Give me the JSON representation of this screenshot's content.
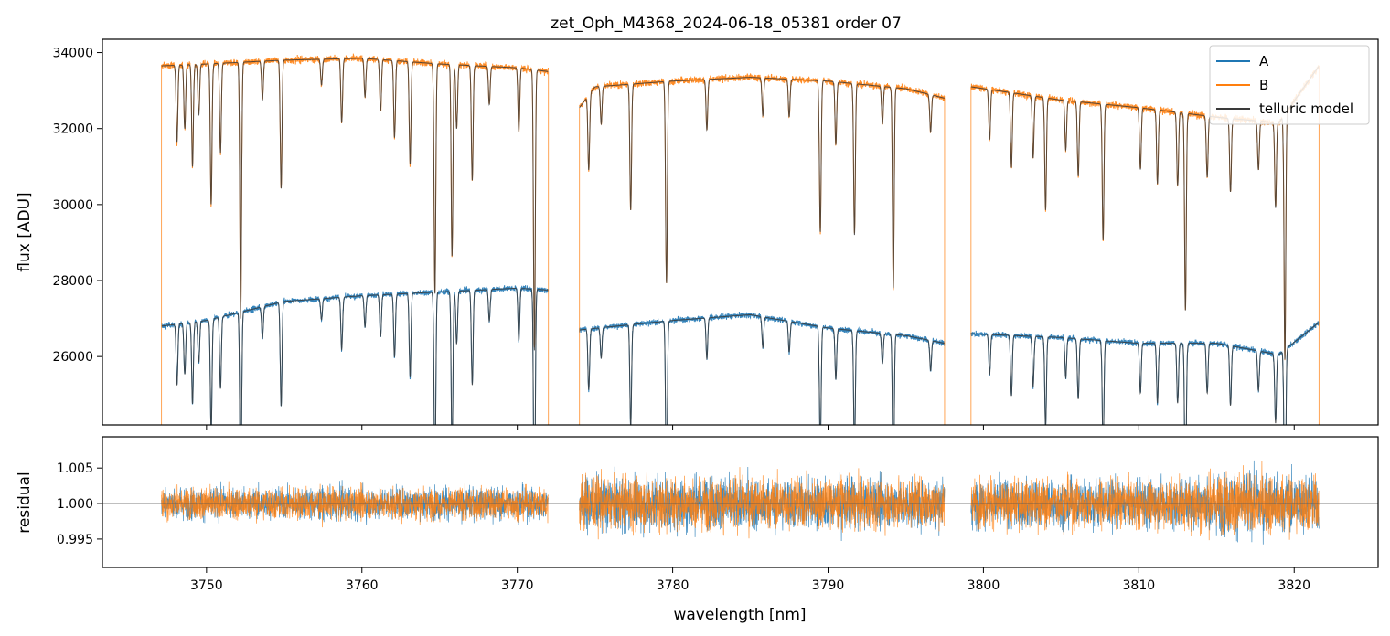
{
  "figure": {
    "title": "zet_Oph_M4368_2024-06-18_05381  order 07"
  },
  "colors": {
    "A": "#1f77b4",
    "B": "#ff7f0e",
    "model": "#3a3a3a",
    "zero_line": "#555555"
  },
  "chart_data": [
    {
      "type": "line",
      "panel": "spectrum",
      "title": "zet_Oph_M4368_2024-06-18_05381  order 07",
      "xlabel": "",
      "ylabel": "flux [ADU]",
      "xlim": [
        3743.3,
        3825.4
      ],
      "ylim": [
        24200,
        34350
      ],
      "yticks": [
        26000,
        28000,
        30000,
        32000,
        34000
      ],
      "ytick_labels": [
        "26000",
        "28000",
        "30000",
        "32000",
        "34000"
      ],
      "grid": false,
      "legend": {
        "placement": "top-right",
        "entries": [
          "A",
          "B",
          "telluric model"
        ]
      },
      "segments": [
        [
          3747.1,
          3772.0
        ],
        [
          3774.0,
          3797.5
        ],
        [
          3799.2,
          3821.6
        ]
      ],
      "series": [
        {
          "name": "A",
          "continuum": [
            [
              3747.1,
              26800
            ],
            [
              3750,
              26950
            ],
            [
              3755,
              27450
            ],
            [
              3760,
              27600
            ],
            [
              3765,
              27700
            ],
            [
              3770,
              27800
            ],
            [
              3772.0,
              27750
            ],
            [
              3774.0,
              26700
            ],
            [
              3780,
              26950
            ],
            [
              3785,
              27100
            ],
            [
              3790,
              26750
            ],
            [
              3795,
              26550
            ],
            [
              3797.5,
              26350
            ],
            [
              3799.2,
              26600
            ],
            [
              3805,
              26500
            ],
            [
              3810,
              26350
            ],
            [
              3815,
              26350
            ],
            [
              3819,
              26050
            ],
            [
              3821.6,
              26900
            ]
          ]
        },
        {
          "name": "B",
          "continuum": [
            [
              3747.1,
              33650
            ],
            [
              3750,
              33700
            ],
            [
              3755,
              33800
            ],
            [
              3760,
              33850
            ],
            [
              3765,
              33700
            ],
            [
              3770,
              33600
            ],
            [
              3772.0,
              33500
            ],
            [
              3774.0,
              32550
            ],
            [
              3775,
              33100
            ],
            [
              3780,
              33250
            ],
            [
              3785,
              33350
            ],
            [
              3790,
              33250
            ],
            [
              3795,
              33050
            ],
            [
              3797.5,
              32800
            ],
            [
              3799.2,
              33100
            ],
            [
              3805,
              32750
            ],
            [
              3810,
              32550
            ],
            [
              3815,
              32300
            ],
            [
              3819,
              32150
            ],
            [
              3821.6,
              33650
            ]
          ]
        },
        {
          "name": "telluric model"
        }
      ],
      "lines": [
        [
          3748.1,
          0.06
        ],
        [
          3748.6,
          0.05
        ],
        [
          3749.1,
          0.08
        ],
        [
          3749.5,
          0.04
        ],
        [
          3750.3,
          0.11
        ],
        [
          3750.9,
          0.07
        ],
        [
          3752.2,
          0.2
        ],
        [
          3753.6,
          0.03
        ],
        [
          3754.8,
          0.1
        ],
        [
          3757.4,
          0.02
        ],
        [
          3758.7,
          0.05
        ],
        [
          3760.2,
          0.03
        ],
        [
          3761.2,
          0.04
        ],
        [
          3762.1,
          0.06
        ],
        [
          3763.1,
          0.08
        ],
        [
          3764.7,
          0.18
        ],
        [
          3765.8,
          0.15
        ],
        [
          3766.1,
          0.05
        ],
        [
          3767.1,
          0.09
        ],
        [
          3768.2,
          0.03
        ],
        [
          3770.1,
          0.05
        ],
        [
          3771.1,
          0.22
        ],
        [
          3774.6,
          0.06
        ],
        [
          3775.4,
          0.03
        ],
        [
          3777.3,
          0.1
        ],
        [
          3779.6,
          0.16
        ],
        [
          3782.2,
          0.04
        ],
        [
          3785.8,
          0.03
        ],
        [
          3787.5,
          0.03
        ],
        [
          3789.5,
          0.12
        ],
        [
          3790.5,
          0.05
        ],
        [
          3791.7,
          0.12
        ],
        [
          3793.5,
          0.03
        ],
        [
          3794.2,
          0.16
        ],
        [
          3796.6,
          0.03
        ],
        [
          3800.4,
          0.04
        ],
        [
          3801.8,
          0.06
        ],
        [
          3803.2,
          0.05
        ],
        [
          3804.0,
          0.09
        ],
        [
          3805.3,
          0.04
        ],
        [
          3806.1,
          0.06
        ],
        [
          3807.7,
          0.11
        ],
        [
          3810.1,
          0.05
        ],
        [
          3811.2,
          0.06
        ],
        [
          3812.5,
          0.06
        ],
        [
          3813.0,
          0.16
        ],
        [
          3814.4,
          0.05
        ],
        [
          3815.9,
          0.06
        ],
        [
          3817.7,
          0.04
        ],
        [
          3818.8,
          0.07
        ],
        [
          3819.4,
          0.2
        ]
      ]
    },
    {
      "type": "line",
      "panel": "residual",
      "title": "",
      "xlabel": "wavelength [nm]",
      "ylabel": "residual",
      "xlim": [
        3743.3,
        3825.4
      ],
      "ylim": [
        0.991,
        1.0094
      ],
      "xticks": [
        3750,
        3760,
        3770,
        3780,
        3790,
        3800,
        3810,
        3820
      ],
      "xtick_labels": [
        "3750",
        "3760",
        "3770",
        "3780",
        "3790",
        "3800",
        "3810",
        "3820"
      ],
      "yticks": [
        0.995,
        1.0,
        1.005
      ],
      "ytick_labels": [
        "0.995",
        "1.000",
        "1.005"
      ],
      "reference_line": 1.0,
      "grid": false,
      "noise_level": [
        [
          3747.1,
          0.002
        ],
        [
          3772.0,
          0.002
        ],
        [
          3774.0,
          0.0035
        ],
        [
          3797.5,
          0.003
        ],
        [
          3799.2,
          0.003
        ],
        [
          3812,
          0.003
        ],
        [
          3816,
          0.004
        ],
        [
          3821.6,
          0.0035
        ]
      ],
      "series": [
        {
          "name": "A"
        },
        {
          "name": "B"
        }
      ]
    }
  ]
}
